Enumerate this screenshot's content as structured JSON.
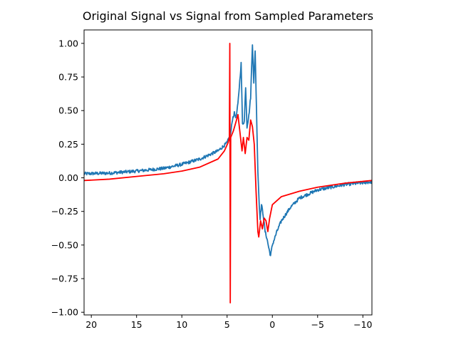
{
  "chart_data": {
    "type": "line",
    "title": "Original Signal vs Signal from Sampled Parameters",
    "xlabel": "",
    "ylabel": "",
    "xlim": [
      20.8,
      -11.0
    ],
    "ylim": [
      -1.02,
      1.1
    ],
    "x_inverted": true,
    "grid": false,
    "legend": "none",
    "x_ticks": [
      20,
      15,
      10,
      5,
      0,
      -5,
      -10
    ],
    "x_tick_labels": [
      "20",
      "15",
      "10",
      "5",
      "0",
      "−5",
      "−10"
    ],
    "y_ticks": [
      1.0,
      0.75,
      0.5,
      0.25,
      0.0,
      -0.25,
      -0.5,
      -0.75,
      -1.0
    ],
    "y_tick_labels": [
      "1.00",
      "0.75",
      "0.50",
      "0.25",
      "0.00",
      "−0.25",
      "−0.50",
      "−0.75",
      "−1.00"
    ],
    "series": [
      {
        "color": "#1f77b4",
        "noise": 0.012,
        "points": [
          [
            20.8,
            0.03
          ],
          [
            18,
            0.035
          ],
          [
            15,
            0.05
          ],
          [
            12,
            0.07
          ],
          [
            10,
            0.1
          ],
          [
            8,
            0.14
          ],
          [
            6,
            0.2
          ],
          [
            5,
            0.26
          ],
          [
            4.6,
            0.33
          ],
          [
            4.4,
            0.44
          ],
          [
            4.2,
            0.48
          ],
          [
            4.0,
            0.45
          ],
          [
            3.8,
            0.55
          ],
          [
            3.6,
            0.72
          ],
          [
            3.45,
            0.85
          ],
          [
            3.3,
            0.4
          ],
          [
            3.1,
            0.42
          ],
          [
            2.95,
            0.68
          ],
          [
            2.8,
            0.38
          ],
          [
            2.6,
            0.46
          ],
          [
            2.4,
            0.6
          ],
          [
            2.2,
            1.0
          ],
          [
            2.05,
            0.7
          ],
          [
            1.9,
            0.95
          ],
          [
            1.75,
            0.5
          ],
          [
            1.6,
            0.05
          ],
          [
            1.45,
            -0.2
          ],
          [
            1.35,
            -0.3
          ],
          [
            1.2,
            -0.2
          ],
          [
            1.0,
            -0.28
          ],
          [
            0.8,
            -0.4
          ],
          [
            0.6,
            -0.45
          ],
          [
            0.4,
            -0.52
          ],
          [
            0.2,
            -0.58
          ],
          [
            0.0,
            -0.5
          ],
          [
            -0.5,
            -0.4
          ],
          [
            -1,
            -0.32
          ],
          [
            -2,
            -0.22
          ],
          [
            -3,
            -0.15
          ],
          [
            -5,
            -0.09
          ],
          [
            -8,
            -0.05
          ],
          [
            -11,
            -0.03
          ]
        ]
      },
      {
        "color": "#ff0000",
        "noise": 0,
        "points": [
          [
            20.8,
            -0.02
          ],
          [
            18,
            -0.01
          ],
          [
            15,
            0.01
          ],
          [
            12,
            0.03
          ],
          [
            10,
            0.05
          ],
          [
            8,
            0.08
          ],
          [
            6,
            0.14
          ],
          [
            5.3,
            0.2
          ],
          [
            4.9,
            0.26
          ],
          [
            4.75,
            0.3
          ],
          [
            4.7,
            1.0
          ],
          [
            4.65,
            -0.93
          ],
          [
            4.6,
            0.3
          ],
          [
            4.3,
            0.35
          ],
          [
            4.0,
            0.42
          ],
          [
            3.8,
            0.47
          ],
          [
            3.6,
            0.35
          ],
          [
            3.35,
            0.2
          ],
          [
            3.2,
            0.3
          ],
          [
            3.0,
            0.18
          ],
          [
            2.8,
            0.3
          ],
          [
            2.6,
            0.28
          ],
          [
            2.4,
            0.43
          ],
          [
            2.2,
            0.38
          ],
          [
            2.0,
            0.25
          ],
          [
            1.8,
            -0.1
          ],
          [
            1.6,
            -0.4
          ],
          [
            1.5,
            -0.44
          ],
          [
            1.3,
            -0.32
          ],
          [
            1.1,
            -0.38
          ],
          [
            0.9,
            -0.3
          ],
          [
            0.7,
            -0.32
          ],
          [
            0.5,
            -0.4
          ],
          [
            0.3,
            -0.3
          ],
          [
            0.0,
            -0.2
          ],
          [
            -1,
            -0.14
          ],
          [
            -3,
            -0.1
          ],
          [
            -5,
            -0.07
          ],
          [
            -8,
            -0.04
          ],
          [
            -11,
            -0.02
          ]
        ]
      }
    ]
  }
}
